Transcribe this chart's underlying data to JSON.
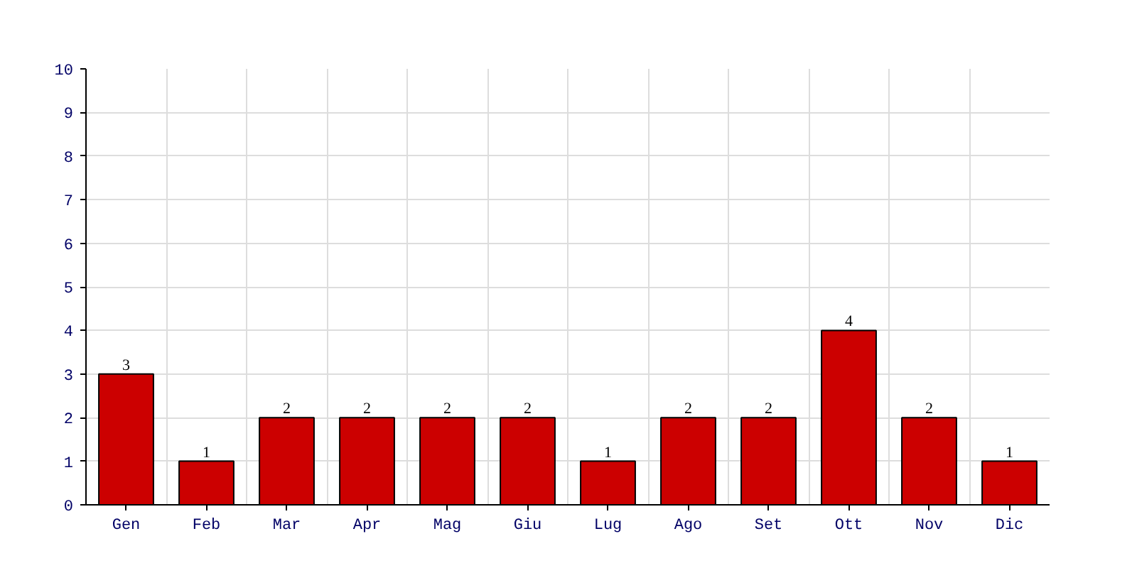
{
  "chart_data": {
    "type": "bar",
    "categories": [
      "Gen",
      "Feb",
      "Mar",
      "Apr",
      "Mag",
      "Giu",
      "Lug",
      "Ago",
      "Set",
      "Ott",
      "Nov",
      "Dic"
    ],
    "values": [
      3,
      1,
      2,
      2,
      2,
      2,
      1,
      2,
      2,
      4,
      2,
      1
    ],
    "color": "#cc0000",
    "ylim": [
      0,
      10
    ],
    "yticks": [
      0,
      1,
      2,
      3,
      4,
      5,
      6,
      7,
      8,
      9,
      10
    ],
    "grid": true,
    "data_labels": true
  }
}
